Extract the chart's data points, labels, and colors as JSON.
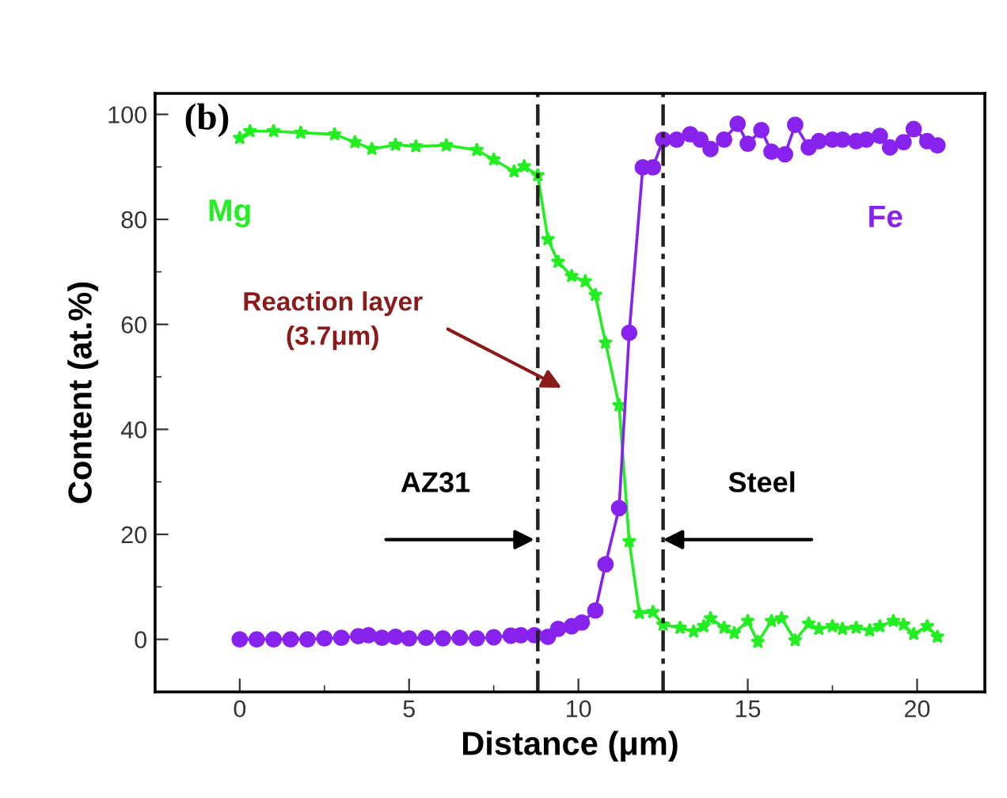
{
  "chart_data": {
    "type": "line",
    "xlabel": "Distance (μm)",
    "ylabel": "Content (at.%)",
    "xlim": [
      -2.5,
      22
    ],
    "xticks": [
      0,
      5,
      10,
      15,
      20
    ],
    "ylim": [
      -10,
      104
    ],
    "yticks": [
      0,
      20,
      40,
      60,
      80,
      100
    ],
    "grid": false,
    "legend": false,
    "series": [
      {
        "name": "Mg",
        "color": "#22ee22",
        "marker": "star",
        "x": [
          0,
          0.3,
          1.0,
          1.8,
          2.8,
          3.4,
          3.9,
          4.6,
          5.2,
          6.1,
          7.0,
          7.5,
          8.1,
          8.4,
          8.8,
          9.1,
          9.4,
          9.8,
          10.2,
          10.5,
          10.8,
          11.2,
          11.5,
          11.8,
          12.2,
          12.5,
          13.0,
          13.4,
          13.7,
          13.9,
          14.3,
          14.6,
          15.0,
          15.3,
          15.7,
          16.0,
          16.4,
          16.8,
          17.1,
          17.5,
          17.8,
          18.2,
          18.6,
          18.9,
          19.3,
          19.6,
          19.9,
          20.3,
          20.6
        ],
        "values": [
          95.5,
          96.8,
          96.8,
          96.5,
          96.2,
          94.7,
          93.4,
          94.2,
          93.9,
          94.1,
          93.2,
          91.4,
          89.1,
          90.1,
          88.4,
          76.2,
          71.9,
          69.2,
          68.2,
          65.6,
          56.5,
          44.6,
          18.7,
          5.0,
          5.2,
          2.8,
          2.2,
          1.5,
          2.5,
          4.0,
          2.2,
          1.2,
          3.5,
          -0.5,
          3.5,
          4.0,
          -0.2,
          3.0,
          2.0,
          2.5,
          2.0,
          2.2,
          1.7,
          2.5,
          3.5,
          2.8,
          1.0,
          2.5,
          0.5
        ]
      },
      {
        "name": "Fe",
        "color": "#8822ee",
        "marker": "circle",
        "x": [
          0,
          0.5,
          1.0,
          1.5,
          2.0,
          2.5,
          3.0,
          3.5,
          3.8,
          4.2,
          4.6,
          5.0,
          5.5,
          6.0,
          6.5,
          7.0,
          7.5,
          8.0,
          8.3,
          8.7,
          9.1,
          9.4,
          9.8,
          10.1,
          10.5,
          10.8,
          11.2,
          11.5,
          11.9,
          12.2,
          12.5,
          12.9,
          13.3,
          13.6,
          13.9,
          14.3,
          14.7,
          15.0,
          15.4,
          15.7,
          16.1,
          16.4,
          16.8,
          17.1,
          17.5,
          17.8,
          18.2,
          18.5,
          18.9,
          19.2,
          19.6,
          19.9,
          20.3,
          20.6
        ],
        "values": [
          0,
          0,
          0,
          0,
          0,
          0.2,
          0.3,
          0.6,
          0.8,
          0.3,
          0.5,
          0.2,
          0.3,
          0.2,
          0.3,
          0.2,
          0.4,
          0.7,
          0.8,
          0.8,
          0.5,
          2.0,
          2.5,
          3.2,
          5.5,
          14.3,
          25.0,
          58.4,
          89.9,
          89.9,
          95.2,
          95.2,
          96.2,
          95.2,
          93.4,
          95.2,
          98.2,
          94.4,
          97.0,
          92.9,
          92.4,
          98.0,
          93.7,
          94.9,
          95.2,
          95.2,
          94.9,
          95.2,
          95.9,
          93.7,
          94.7,
          97.2,
          94.9,
          94.1
        ]
      }
    ],
    "ref_lines": [
      {
        "axis": "x",
        "value": 8.8,
        "color": "#222222",
        "line_style": "dashed"
      },
      {
        "axis": "x",
        "value": 12.5,
        "color": "#222222",
        "line_style": "dashed"
      }
    ],
    "annotations": [
      "(b)",
      "Reaction layer\n(3.7μm)",
      {
        "text": "AZ31",
        "x": 8.7,
        "y": 19
      },
      {
        "text": "Steel",
        "x": 12.5,
        "y": 19
      }
    ]
  }
}
